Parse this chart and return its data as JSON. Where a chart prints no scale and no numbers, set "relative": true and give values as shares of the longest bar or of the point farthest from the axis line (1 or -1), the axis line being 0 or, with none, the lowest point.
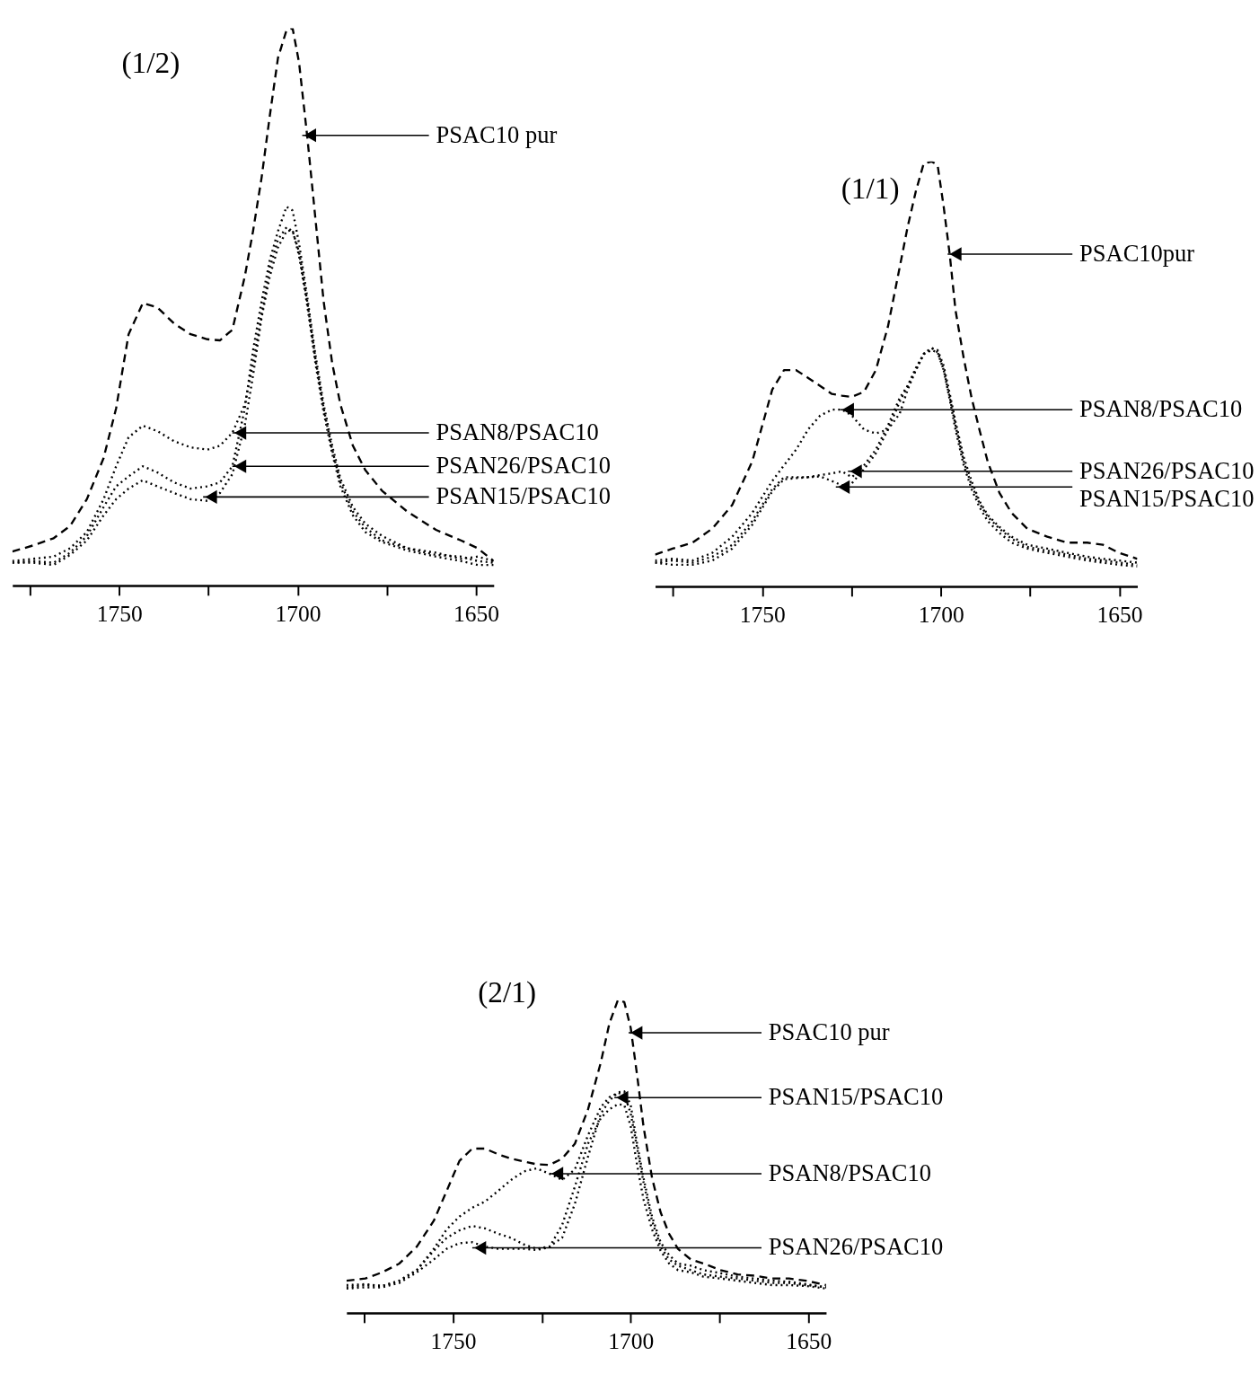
{
  "chart_data": [
    {
      "type": "line",
      "title": "(1/2)",
      "relative": true,
      "xlim": [
        1780,
        1645
      ],
      "xticks": [
        {
          "value": 1775,
          "label": null
        },
        1750,
        {
          "value": 1725,
          "label": null
        },
        1700,
        {
          "value": 1675,
          "label": null
        },
        1650
      ],
      "x": [
        1780,
        1774.2,
        1768.4,
        1763.8,
        1759.1,
        1754.4,
        1750.9,
        1747.4,
        1743.4,
        1739.3,
        1734.6,
        1730.0,
        1725.3,
        1721.8,
        1718.3,
        1714.8,
        1712.5,
        1710.1,
        1707.8,
        1705.5,
        1703.1,
        1701.4,
        1699.6,
        1697.3,
        1695.0,
        1692.7,
        1690.3,
        1688.0,
        1684.5,
        1681.0,
        1676.3,
        1669.3,
        1661.2,
        1654.2,
        1649.5,
        1645
      ],
      "series": [
        {
          "color": "#000000",
          "line_style": "dashed",
          "values": [
            0.061,
            0.072,
            0.085,
            0.107,
            0.155,
            0.229,
            0.318,
            0.451,
            0.507,
            0.499,
            0.47,
            0.451,
            0.442,
            0.44,
            0.459,
            0.555,
            0.636,
            0.732,
            0.843,
            0.947,
            0.997,
            1.0,
            0.939,
            0.806,
            0.658,
            0.51,
            0.399,
            0.325,
            0.251,
            0.207,
            0.17,
            0.133,
            0.1,
            0.081,
            0.067,
            0.044
          ]
        },
        {
          "color": "#000000",
          "line_style": "dotted",
          "values": [
            0.044,
            0.048,
            0.052,
            0.067,
            0.096,
            0.155,
            0.214,
            0.266,
            0.287,
            0.277,
            0.259,
            0.248,
            0.244,
            0.251,
            0.274,
            0.325,
            0.399,
            0.488,
            0.57,
            0.621,
            0.643,
            0.636,
            0.599,
            0.51,
            0.407,
            0.318,
            0.244,
            0.185,
            0.133,
            0.104,
            0.081,
            0.067,
            0.055,
            0.052,
            0.044,
            0.041
          ]
        },
        {
          "color": "#000000",
          "line_style": "dotted",
          "values": [
            0.041,
            0.044,
            0.041,
            0.059,
            0.089,
            0.141,
            0.178,
            0.196,
            0.214,
            0.203,
            0.185,
            0.174,
            0.178,
            0.185,
            0.214,
            0.318,
            0.422,
            0.51,
            0.584,
            0.636,
            0.68,
            0.673,
            0.614,
            0.518,
            0.414,
            0.325,
            0.251,
            0.192,
            0.141,
            0.111,
            0.089,
            0.067,
            0.059,
            0.048,
            0.052,
            0.044
          ]
        },
        {
          "color": "#000000",
          "line_style": "dotted",
          "values": [
            0.041,
            0.041,
            0.037,
            0.055,
            0.081,
            0.126,
            0.155,
            0.174,
            0.189,
            0.178,
            0.166,
            0.155,
            0.152,
            0.166,
            0.2,
            0.288,
            0.377,
            0.481,
            0.555,
            0.607,
            0.636,
            0.638,
            0.592,
            0.503,
            0.399,
            0.311,
            0.237,
            0.178,
            0.126,
            0.096,
            0.078,
            0.063,
            0.052,
            0.044,
            0.037,
            0.037
          ]
        }
      ],
      "annotations": [
        {
          "text": "PSAC10 pur",
          "x": 1698.7,
          "y": 0.808
        },
        {
          "text": "PSAN8/PSAC10",
          "x": 1718.3,
          "y": 0.274
        },
        {
          "text": "PSAN26/PSAC10",
          "x": 1718.3,
          "y": 0.214
        },
        {
          "text": "PSAN15/PSAC10",
          "x": 1726.5,
          "y": 0.159
        }
      ]
    },
    {
      "type": "line",
      "title": "(1/1)",
      "relative": true,
      "xlim": [
        1780,
        1645
      ],
      "xticks": [
        {
          "value": 1775,
          "label": null
        },
        1750,
        {
          "value": 1725,
          "label": null
        },
        1700,
        {
          "value": 1675,
          "label": null
        },
        1650
      ],
      "x": [
        1780,
        1775.1,
        1769.5,
        1764.0,
        1758.4,
        1752.8,
        1747.2,
        1743.9,
        1740.5,
        1737.2,
        1733.8,
        1730.5,
        1727.7,
        1724.9,
        1721.5,
        1718.2,
        1714.8,
        1711.5,
        1709.3,
        1707.0,
        1704.8,
        1702.6,
        1700.9,
        1699.2,
        1697.5,
        1695.9,
        1693.6,
        1691.4,
        1689.2,
        1686.9,
        1683.6,
        1680.2,
        1675.8,
        1670.2,
        1664.6,
        1659.0,
        1654.6,
        1650.1,
        1645
      ],
      "series": [
        {
          "color": "#000000",
          "line_style": "dashed",
          "values": [
            0.075,
            0.089,
            0.103,
            0.136,
            0.192,
            0.294,
            0.463,
            0.509,
            0.509,
            0.491,
            0.472,
            0.453,
            0.449,
            0.446,
            0.458,
            0.509,
            0.612,
            0.752,
            0.846,
            0.93,
            0.995,
            1.0,
            0.991,
            0.893,
            0.78,
            0.65,
            0.537,
            0.444,
            0.369,
            0.294,
            0.22,
            0.173,
            0.136,
            0.117,
            0.103,
            0.103,
            0.098,
            0.079,
            0.065
          ]
        },
        {
          "color": "#000000",
          "line_style": "dotted",
          "values": [
            0.061,
            0.065,
            0.061,
            0.079,
            0.117,
            0.173,
            0.248,
            0.285,
            0.322,
            0.369,
            0.402,
            0.416,
            0.416,
            0.402,
            0.369,
            0.36,
            0.369,
            0.407,
            0.463,
            0.509,
            0.547,
            0.561,
            0.556,
            0.519,
            0.453,
            0.388,
            0.304,
            0.248,
            0.201,
            0.168,
            0.14,
            0.117,
            0.098,
            0.089,
            0.079,
            0.07,
            0.065,
            0.061,
            0.056
          ]
        },
        {
          "color": "#000000",
          "line_style": "dotted",
          "values": [
            0.056,
            0.061,
            0.056,
            0.07,
            0.098,
            0.154,
            0.229,
            0.257,
            0.257,
            0.257,
            0.262,
            0.266,
            0.271,
            0.257,
            0.285,
            0.322,
            0.379,
            0.444,
            0.472,
            0.509,
            0.547,
            0.556,
            0.551,
            0.509,
            0.444,
            0.379,
            0.294,
            0.238,
            0.196,
            0.164,
            0.136,
            0.112,
            0.093,
            0.084,
            0.075,
            0.065,
            0.061,
            0.056,
            0.051
          ]
        },
        {
          "color": "#000000",
          "line_style": "dotted",
          "values": [
            0.056,
            0.051,
            0.051,
            0.061,
            0.089,
            0.145,
            0.224,
            0.252,
            0.255,
            0.257,
            0.259,
            0.248,
            0.238,
            0.243,
            0.276,
            0.313,
            0.369,
            0.435,
            0.472,
            0.514,
            0.547,
            0.561,
            0.551,
            0.509,
            0.439,
            0.369,
            0.285,
            0.229,
            0.187,
            0.154,
            0.126,
            0.103,
            0.089,
            0.079,
            0.07,
            0.061,
            0.056,
            0.051,
            0.047
          ]
        }
      ],
      "annotations": [
        {
          "text": "PSAC10pur",
          "x": 1698.1,
          "y": 0.782
        },
        {
          "text": "PSAN8/PSAC10",
          "x": 1728.2,
          "y": 0.416
        },
        {
          "text": "PSAN26/PSAC10",
          "x": 1726.0,
          "y": 0.271
        },
        {
          "text": "PSAN15/PSAC10",
          "x": 1729.4,
          "y": 0.234
        }
      ]
    },
    {
      "type": "line",
      "title": "(2/1)",
      "relative": true,
      "xlim": [
        1780,
        1645
      ],
      "xticks": [
        {
          "value": 1775,
          "label": null
        },
        1750,
        {
          "value": 1725,
          "label": null
        },
        1700,
        {
          "value": 1675,
          "label": null
        },
        1650
      ],
      "x": [
        1780,
        1774.7,
        1769.9,
        1765.1,
        1760.2,
        1755.4,
        1751.8,
        1748.2,
        1744.6,
        1741.0,
        1737.3,
        1733.7,
        1730.1,
        1726.5,
        1722.9,
        1719.3,
        1715.7,
        1712.0,
        1708.4,
        1706.0,
        1703.6,
        1701.8,
        1700.0,
        1698.2,
        1696.4,
        1694.0,
        1691.6,
        1689.2,
        1686.7,
        1683.1,
        1679.5,
        1674.7,
        1669.9,
        1665.1,
        1660.2,
        1655.4,
        1650.6,
        1645
      ],
      "series": [
        {
          "color": "#000000",
          "line_style": "dashed",
          "values": [
            0.103,
            0.11,
            0.13,
            0.158,
            0.212,
            0.295,
            0.39,
            0.486,
            0.525,
            0.525,
            0.507,
            0.493,
            0.484,
            0.475,
            0.473,
            0.493,
            0.541,
            0.651,
            0.801,
            0.925,
            1.0,
            0.993,
            0.911,
            0.76,
            0.596,
            0.432,
            0.322,
            0.253,
            0.205,
            0.171,
            0.158,
            0.137,
            0.123,
            0.119,
            0.11,
            0.11,
            0.103,
            0.089
          ]
        },
        {
          "color": "#000000",
          "line_style": "dotted",
          "values": [
            0.089,
            0.092,
            0.086,
            0.103,
            0.137,
            0.199,
            0.24,
            0.264,
            0.278,
            0.27,
            0.253,
            0.24,
            0.219,
            0.205,
            0.212,
            0.24,
            0.349,
            0.5,
            0.637,
            0.678,
            0.705,
            0.708,
            0.664,
            0.541,
            0.432,
            0.308,
            0.226,
            0.185,
            0.158,
            0.151,
            0.137,
            0.127,
            0.116,
            0.11,
            0.103,
            0.1,
            0.092,
            0.082
          ]
        },
        {
          "color": "#000000",
          "line_style": "dotted",
          "values": [
            0.082,
            0.089,
            0.086,
            0.103,
            0.137,
            0.205,
            0.267,
            0.308,
            0.336,
            0.356,
            0.39,
            0.425,
            0.452,
            0.462,
            0.445,
            0.425,
            0.459,
            0.568,
            0.658,
            0.689,
            0.703,
            0.699,
            0.637,
            0.527,
            0.418,
            0.295,
            0.212,
            0.171,
            0.151,
            0.137,
            0.123,
            0.116,
            0.11,
            0.103,
            0.096,
            0.096,
            0.089,
            0.082
          ]
        },
        {
          "color": "#000000",
          "line_style": "dotted",
          "values": [
            0.078,
            0.082,
            0.082,
            0.096,
            0.13,
            0.171,
            0.205,
            0.223,
            0.226,
            0.212,
            0.205,
            0.205,
            0.205,
            0.201,
            0.21,
            0.281,
            0.404,
            0.541,
            0.623,
            0.651,
            0.667,
            0.664,
            0.596,
            0.473,
            0.363,
            0.267,
            0.199,
            0.158,
            0.137,
            0.13,
            0.116,
            0.11,
            0.103,
            0.096,
            0.089,
            0.089,
            0.086,
            0.078
          ]
        }
      ],
      "annotations": [
        {
          "text": "PSAC10 pur",
          "x": 1700.6,
          "y": 0.895
        },
        {
          "text": "PSAN15/PSAC10",
          "x": 1704.6,
          "y": 0.688
        },
        {
          "text": "PSAN8/PSAC10",
          "x": 1722.9,
          "y": 0.445
        },
        {
          "text": "PSAN26/PSAC10",
          "x": 1744.6,
          "y": 0.208
        }
      ]
    }
  ]
}
